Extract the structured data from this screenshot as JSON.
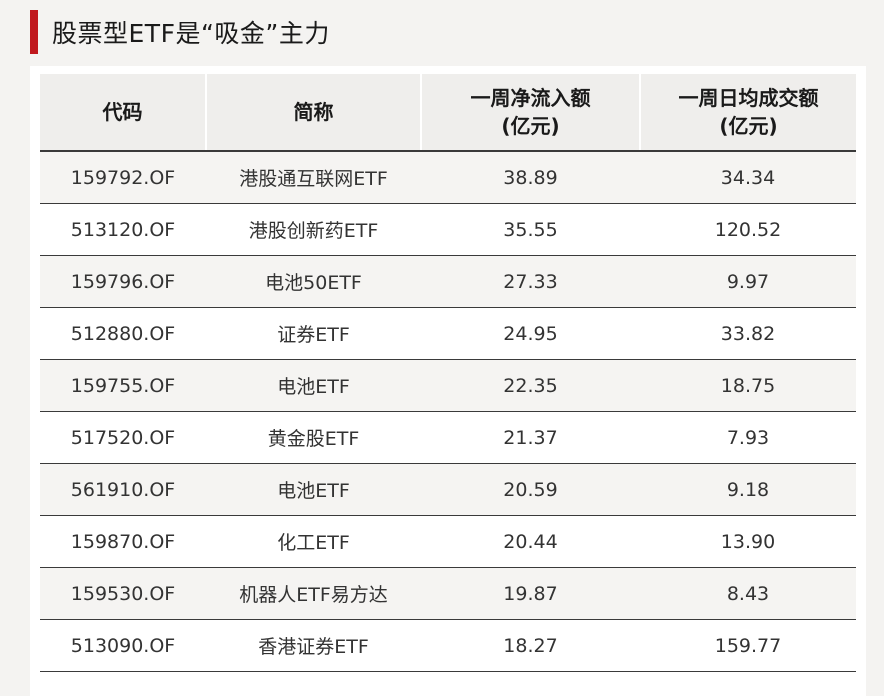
{
  "title": "股票型ETF是“吸金”主力",
  "headers": {
    "code": "代码",
    "name": "简称",
    "inflow_line1": "一周净流入额",
    "inflow_line2": "(亿元)",
    "turnover_line1": "一周日均成交额",
    "turnover_line2": "(亿元)"
  },
  "rows": [
    {
      "code": "159792.OF",
      "name": "港股通互联网ETF",
      "inflow": "38.89",
      "turnover": "34.34"
    },
    {
      "code": "513120.OF",
      "name": "港股创新药ETF",
      "inflow": "35.55",
      "turnover": "120.52"
    },
    {
      "code": "159796.OF",
      "name": "电池50ETF",
      "inflow": "27.33",
      "turnover": "9.97"
    },
    {
      "code": "512880.OF",
      "name": "证券ETF",
      "inflow": "24.95",
      "turnover": "33.82"
    },
    {
      "code": "159755.OF",
      "name": "电池ETF",
      "inflow": "22.35",
      "turnover": "18.75"
    },
    {
      "code": "517520.OF",
      "name": "黄金股ETF",
      "inflow": "21.37",
      "turnover": "7.93"
    },
    {
      "code": "561910.OF",
      "name": "电池ETF",
      "inflow": "20.59",
      "turnover": "9.18"
    },
    {
      "code": "159870.OF",
      "name": "化工ETF",
      "inflow": "20.44",
      "turnover": "13.90"
    },
    {
      "code": "159530.OF",
      "name": "机器人ETF易方达",
      "inflow": "19.87",
      "turnover": "8.43"
    },
    {
      "code": "513090.OF",
      "name": "香港证券ETF",
      "inflow": "18.27",
      "turnover": "159.77"
    }
  ]
}
